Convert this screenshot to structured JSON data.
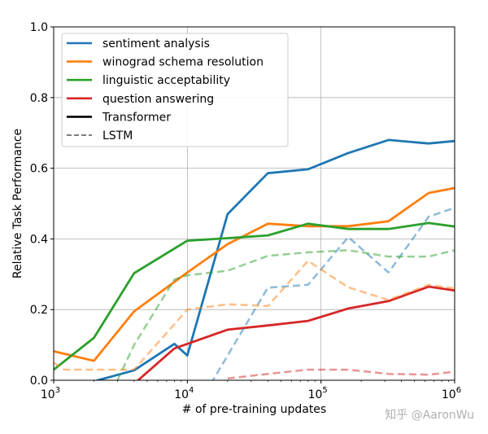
{
  "chart_data": {
    "type": "line",
    "title": "",
    "xlabel": "# of pre-training updates",
    "ylabel": "Relative Task Performance",
    "xscale": "log",
    "xlim": [
      1000,
      1000000
    ],
    "ylim": [
      0,
      1.0
    ],
    "grid": true,
    "x_ticks": [
      {
        "value": 1000,
        "base": "10",
        "exp": "3"
      },
      {
        "value": 10000,
        "base": "10",
        "exp": "4"
      },
      {
        "value": 100000,
        "base": "10",
        "exp": "5"
      },
      {
        "value": 1000000,
        "base": "10",
        "exp": "6"
      }
    ],
    "y_ticks": [
      {
        "value": 0.0,
        "label": "0.0"
      },
      {
        "value": 0.2,
        "label": "0.2"
      },
      {
        "value": 0.4,
        "label": "0.4"
      },
      {
        "value": 0.6,
        "label": "0.6"
      },
      {
        "value": 0.8,
        "label": "0.8"
      },
      {
        "value": 1.0,
        "label": "1.0"
      }
    ],
    "legend_position": "top-left",
    "legend": [
      {
        "label": "sentiment analysis",
        "color": "#1f77b4",
        "style": "solid"
      },
      {
        "label": "winograd schema resolution",
        "color": "#ff7f0e",
        "style": "solid"
      },
      {
        "label": "linguistic acceptability",
        "color": "#2ca02c",
        "style": "solid"
      },
      {
        "label": "question answering",
        "color": "#d62728",
        "style": "solid"
      },
      {
        "label": "Transformer",
        "color": "#000000",
        "style": "solid"
      },
      {
        "label": "LSTM",
        "color": "#7f7f7f",
        "style": "dashed"
      }
    ],
    "series": [
      {
        "name": "sentiment analysis",
        "model": "Transformer",
        "color": "#1f77b4",
        "dashed": false,
        "x": [
          1000,
          2000,
          4000,
          8000,
          10000,
          20000,
          40000,
          80000,
          160000,
          320000,
          640000,
          1000000
        ],
        "y": [
          -0.03,
          -0.003,
          0.028,
          0.103,
          0.07,
          0.47,
          0.586,
          0.597,
          0.643,
          0.68,
          0.67,
          0.677
        ]
      },
      {
        "name": "winograd schema resolution",
        "model": "Transformer",
        "color": "#ff7f0e",
        "dashed": false,
        "x": [
          1000,
          2000,
          4000,
          10000,
          20000,
          40000,
          80000,
          160000,
          320000,
          640000,
          1000000
        ],
        "y": [
          0.082,
          0.055,
          0.195,
          0.305,
          0.385,
          0.443,
          0.436,
          0.436,
          0.45,
          0.53,
          0.544
        ]
      },
      {
        "name": "linguistic acceptability",
        "model": "Transformer",
        "color": "#2ca02c",
        "dashed": false,
        "x": [
          1000,
          2000,
          4000,
          10000,
          20000,
          40000,
          80000,
          160000,
          320000,
          640000,
          1000000
        ],
        "y": [
          0.03,
          0.12,
          0.303,
          0.395,
          0.402,
          0.41,
          0.443,
          0.428,
          0.428,
          0.445,
          0.435
        ]
      },
      {
        "name": "question answering",
        "model": "Transformer",
        "color": "#d62728",
        "dashed": false,
        "x": [
          4000,
          8000,
          20000,
          40000,
          80000,
          160000,
          320000,
          640000,
          1000000
        ],
        "y": [
          -0.01,
          0.09,
          0.143,
          0.155,
          0.168,
          0.203,
          0.224,
          0.265,
          0.254
        ]
      },
      {
        "name": "sentiment analysis",
        "model": "LSTM",
        "color": "#1f77b4",
        "dashed": true,
        "x": [
          15000,
          40000,
          80000,
          160000,
          320000,
          640000,
          1000000
        ],
        "y": [
          -0.01,
          0.262,
          0.27,
          0.405,
          0.305,
          0.463,
          0.488
        ]
      },
      {
        "name": "winograd schema resolution",
        "model": "LSTM",
        "color": "#ff7f0e",
        "dashed": true,
        "x": [
          1000,
          1200,
          4000,
          10000,
          20000,
          40000,
          80000,
          160000,
          320000,
          640000,
          1000000
        ],
        "y": [
          0.05,
          0.03,
          0.03,
          0.2,
          0.215,
          0.21,
          0.338,
          0.263,
          0.227,
          0.27,
          0.26
        ]
      },
      {
        "name": "linguistic acceptability",
        "model": "LSTM",
        "color": "#2ca02c",
        "dashed": true,
        "x": [
          3000,
          4000,
          8000,
          10000,
          20000,
          40000,
          80000,
          160000,
          320000,
          640000,
          1000000
        ],
        "y": [
          0.0,
          0.1,
          0.285,
          0.297,
          0.31,
          0.352,
          0.362,
          0.368,
          0.35,
          0.35,
          0.368
        ]
      },
      {
        "name": "question answering",
        "model": "LSTM",
        "color": "#d62728",
        "dashed": true,
        "x": [
          20000,
          40000,
          80000,
          160000,
          320000,
          640000,
          1000000
        ],
        "y": [
          0.005,
          0.018,
          0.03,
          0.03,
          0.018,
          0.016,
          0.024
        ]
      }
    ]
  },
  "watermark": "知乎 @AaronWu"
}
